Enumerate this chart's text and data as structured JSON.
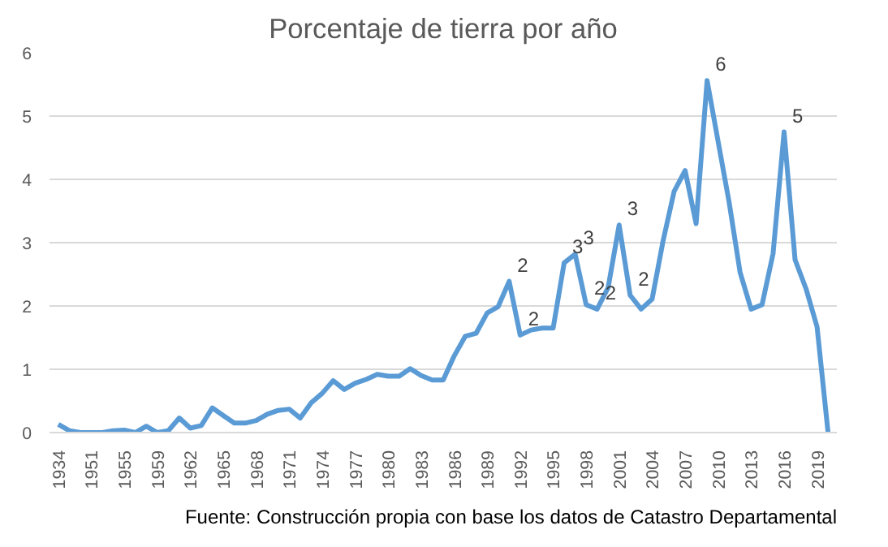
{
  "chart_data": {
    "type": "line",
    "title": "Porcentaje de tierra por año",
    "categories": [
      "1934",
      null,
      null,
      "1951",
      null,
      null,
      "1955",
      null,
      null,
      "1959",
      null,
      null,
      "1962",
      null,
      null,
      "1965",
      null,
      null,
      "1968",
      null,
      null,
      "1971",
      null,
      null,
      "1974",
      null,
      null,
      "1977",
      null,
      null,
      "1980",
      null,
      null,
      "1983",
      null,
      null,
      "1986",
      null,
      null,
      "1989",
      null,
      null,
      "1992",
      null,
      null,
      "1995",
      null,
      null,
      "1998",
      null,
      null,
      "2001",
      null,
      null,
      "2004",
      null,
      null,
      "2007",
      null,
      null,
      "2010",
      null,
      null,
      "2013",
      null,
      null,
      "2016",
      null,
      null,
      "2019",
      null
    ],
    "series": [
      {
        "color": "#5b9bd5",
        "values": [
          0.13,
          0.03,
          0,
          0,
          0,
          0.03,
          0.04,
          0,
          0.1,
          0,
          0.03,
          0.23,
          0.07,
          0.11,
          0.39,
          0.27,
          0.15,
          0.15,
          0.19,
          0.29,
          0.35,
          0.37,
          0.23,
          0.47,
          0.62,
          0.82,
          0.68,
          0.78,
          0.84,
          0.92,
          0.89,
          0.89,
          1.01,
          0.9,
          0.83,
          0.83,
          1.21,
          1.52,
          1.57,
          1.89,
          1.99,
          2.39,
          1.54,
          1.62,
          1.65,
          1.65,
          2.68,
          2.82,
          2.02,
          1.95,
          2.29,
          3.28,
          2.17,
          1.95,
          2.11,
          3.03,
          3.81,
          4.14,
          3.3,
          5.56,
          4.6,
          3.64,
          2.53,
          1.95,
          2.02,
          2.83,
          4.75,
          2.73,
          2.27,
          1.67,
          0
        ],
        "value_labels": [
          null,
          null,
          null,
          null,
          null,
          null,
          null,
          null,
          null,
          null,
          null,
          null,
          null,
          null,
          null,
          null,
          null,
          null,
          null,
          null,
          null,
          null,
          null,
          null,
          null,
          null,
          null,
          null,
          null,
          null,
          null,
          null,
          null,
          null,
          null,
          null,
          null,
          null,
          null,
          null,
          null,
          "2",
          "2",
          null,
          null,
          null,
          "3",
          "3",
          "2",
          "2",
          null,
          "3",
          "2",
          null,
          null,
          null,
          null,
          null,
          null,
          "6",
          null,
          null,
          null,
          null,
          null,
          null,
          "5",
          null,
          null,
          null,
          null
        ]
      }
    ],
    "ylim": [
      0,
      6
    ],
    "yticks": [
      0,
      1,
      2,
      3,
      4,
      5,
      6
    ],
    "grid": "y",
    "marker": "none",
    "line_style": "solid",
    "annotations": [
      "Fuente: Construcción propia con base los datos de Catastro Departamental"
    ]
  }
}
